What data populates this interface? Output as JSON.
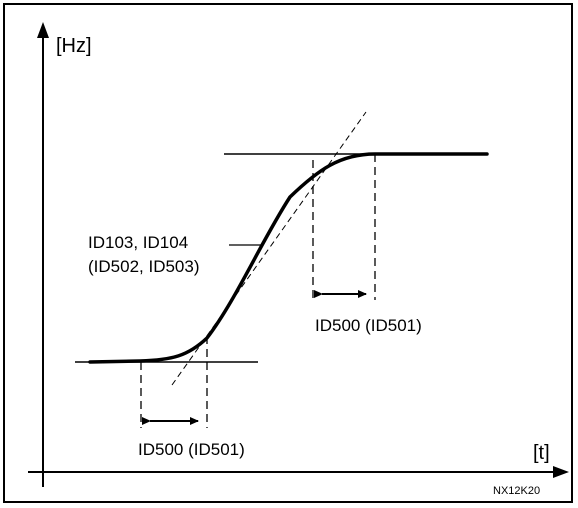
{
  "diagram": {
    "y_axis_label": "[Hz]",
    "x_axis_label": "[t]",
    "ramp_label_line1": "ID103, ID104",
    "ramp_label_line2": "(ID502, ID503)",
    "scurve_label_bottom": "ID500 (ID501)",
    "scurve_label_top": "ID500 (ID501)",
    "figure_code": "NX12K20"
  }
}
